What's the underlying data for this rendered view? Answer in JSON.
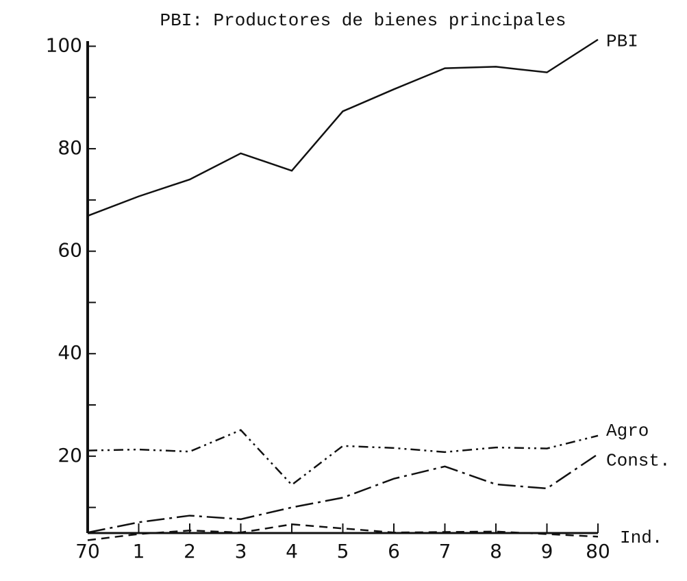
{
  "chart_data": {
    "type": "line",
    "title": "PBI: Productores de bienes principales",
    "categories": [
      "70",
      "1",
      "2",
      "3",
      "4",
      "5",
      "6",
      "7",
      "8",
      "9",
      "80"
    ],
    "series": [
      {
        "name": "PBI",
        "color": "#111111",
        "dash": "solid",
        "values": [
          66.9,
          70.7,
          74,
          79.1,
          75.7,
          87.3,
          91.6,
          95.7,
          96,
          94.9,
          101.3
        ]
      },
      {
        "name": "Agro",
        "color": "#111111",
        "dash": "dash-dot-dot",
        "values": [
          21.1,
          21.3,
          20.9,
          25.1,
          14.4,
          22,
          21.6,
          20.8,
          21.7,
          21.5,
          24
        ]
      },
      {
        "name": "Const.",
        "color": "#111111",
        "dash": "long-dash-dot",
        "values": [
          5.1,
          7.1,
          8.4,
          7.7,
          10,
          11.9,
          15.6,
          18,
          14.5,
          13.7,
          20.4
        ]
      },
      {
        "name": "Ind.",
        "color": "#111111",
        "dash": "dashed",
        "values": [
          3.6,
          4.8,
          5.5,
          5.1,
          6.7,
          5.9,
          5.1,
          5.2,
          5.3,
          4.8,
          4.3
        ]
      }
    ],
    "ylim": [
      5,
      101
    ],
    "yticks": [
      20,
      40,
      60,
      80,
      100
    ],
    "yminor_ticks": [
      10,
      30,
      50,
      70,
      90
    ],
    "grid": false
  }
}
